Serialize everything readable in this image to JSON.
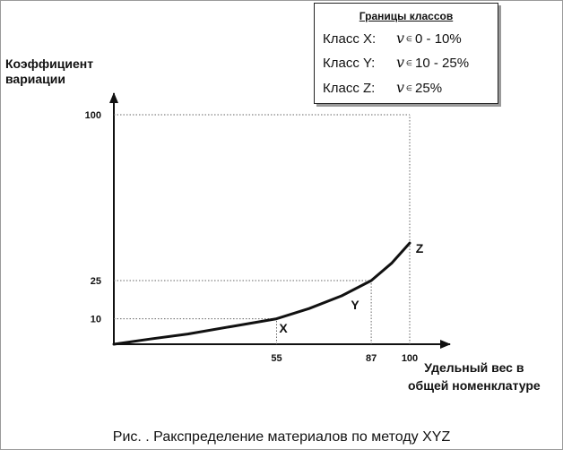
{
  "chart_data": {
    "type": "line",
    "ylabel_lines": [
      "Коэффициент",
      "вариации"
    ],
    "xlabel_lines": [
      "Удельный вес в",
      "общей номенклатуре"
    ],
    "x_ticks": [
      55,
      87,
      100
    ],
    "y_ticks": [
      10,
      25,
      100
    ],
    "xlim": [
      0,
      110
    ],
    "ylim": [
      0,
      115
    ],
    "series": [
      {
        "x": [
          0,
          12,
          25,
          40,
          55,
          66,
          77,
          87,
          94,
          100
        ],
        "y": [
          0,
          2,
          4,
          7,
          10,
          14,
          19,
          25,
          33,
          42
        ]
      }
    ],
    "class_labels": [
      {
        "text": "X"
      },
      {
        "text": "Y"
      },
      {
        "text": "Z"
      }
    ]
  },
  "legend": {
    "title": "Границы классов",
    "rows": [
      {
        "cls": "Класс X:",
        "symbol": "v",
        "in": "∈",
        "range": "0 - 10%"
      },
      {
        "cls": "Класс Y:",
        "symbol": "v",
        "in": "∈",
        "range": "10 - 25%"
      },
      {
        "cls": "Класс Z:",
        "symbol": "v",
        "in": "∈",
        "range": "25%"
      }
    ]
  },
  "caption": "Рис.  . Ракспределение материалов по методу XYZ"
}
